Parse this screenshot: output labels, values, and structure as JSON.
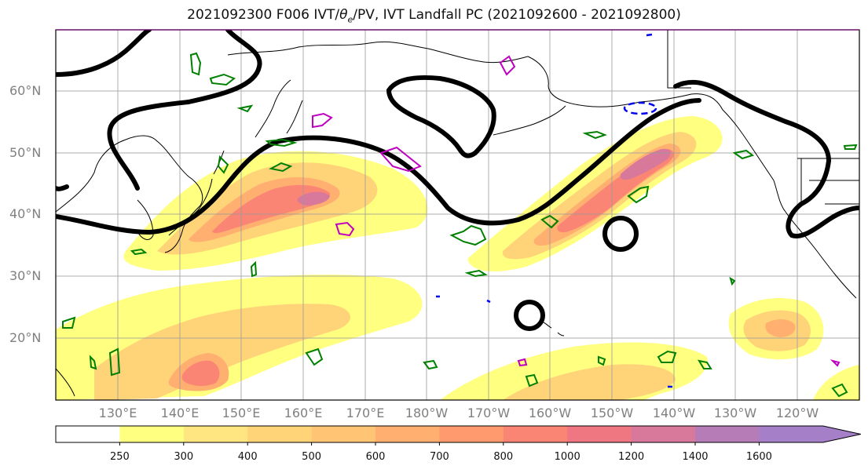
{
  "title": "2021092300 F006 IVT/θe/PV, IVT Landfall PC (2021092600 - 2021092800)",
  "title_parts": {
    "prefix": "2021092300 F006 IVT/",
    "theta": "θ",
    "theta_sub": "e",
    "suffix": "/PV, IVT Landfall PC (2021092600 - 2021092800)"
  },
  "lat_labels": [
    "60°N",
    "50°N",
    "40°N",
    "30°N",
    "20°N"
  ],
  "lon_labels": [
    "130°E",
    "140°E",
    "150°E",
    "160°E",
    "170°E",
    "180°W",
    "170°W",
    "160°W",
    "150°W",
    "140°W",
    "130°W",
    "120°W"
  ],
  "colorbar": {
    "ticks": [
      "250",
      "300",
      "400",
      "500",
      "600",
      "700",
      "800",
      "1000",
      "1200",
      "1400",
      "1600"
    ],
    "colors": [
      "#ffffff",
      "#ffff80",
      "#ffe680",
      "#ffd479",
      "#ffc575",
      "#ffb070",
      "#ff9a6e",
      "#fb8575",
      "#ee7782",
      "#d8799c",
      "#b57cb8",
      "#a57fc8"
    ]
  },
  "colors": {
    "contour_black": "#000000",
    "contour_green": "#008000",
    "contour_magenta": "#c000c0",
    "contour_blue": "#0000ee",
    "coastline": "#000000",
    "grid": "#999999"
  }
}
